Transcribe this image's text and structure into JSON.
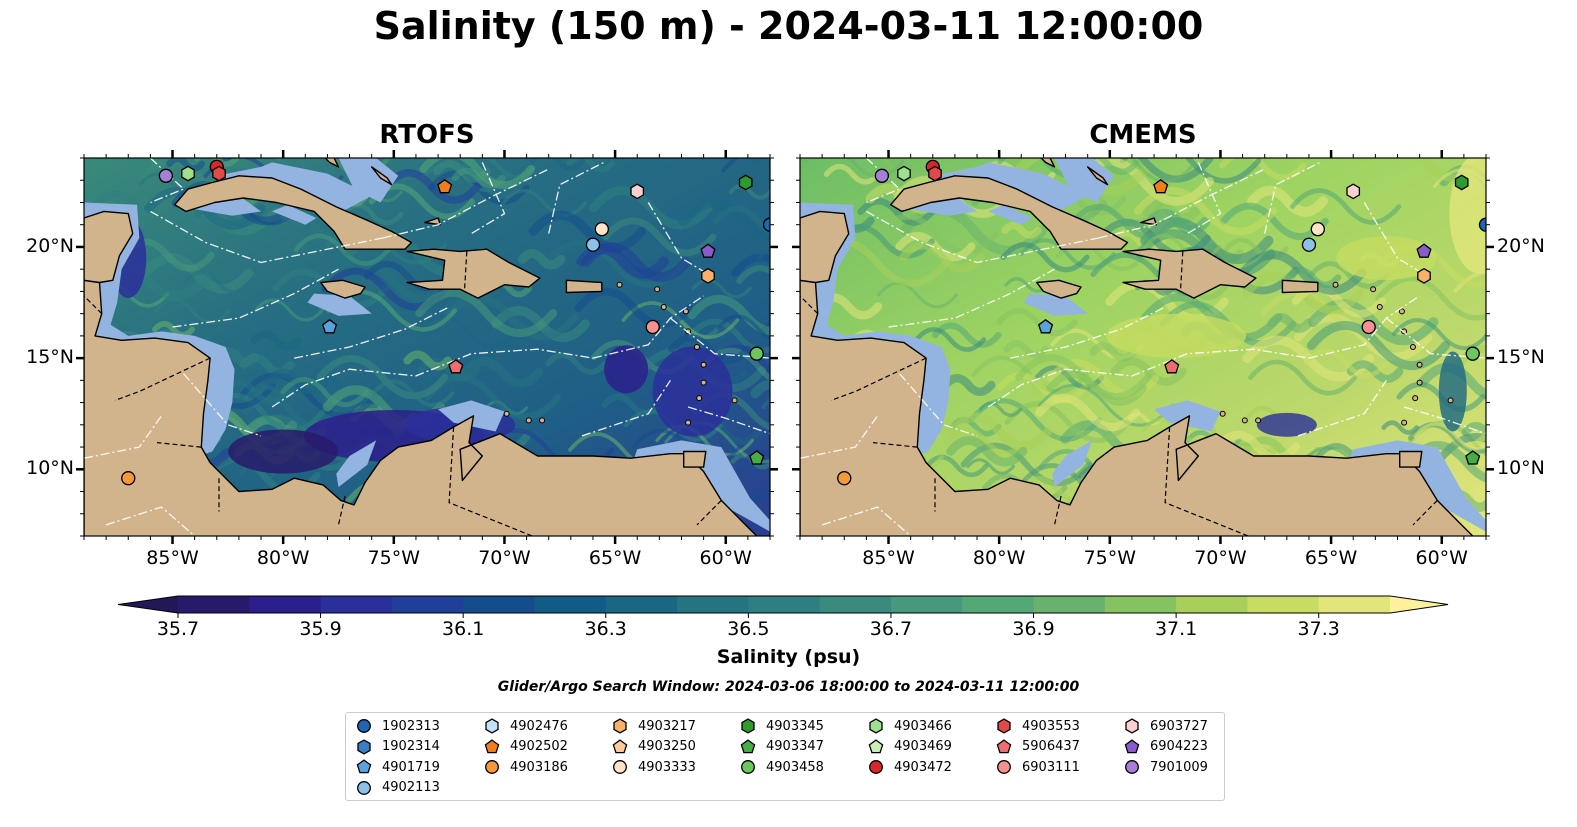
{
  "title": "Salinity (150 m) - 2024-03-11 12:00:00",
  "panels": [
    {
      "id": "rtofs",
      "title": "RTOFS",
      "base_color": "#2e6f8e",
      "scheme": "rtofs"
    },
    {
      "id": "cmems",
      "title": "CMEMS",
      "base_color": "#8fd06a",
      "scheme": "cmems"
    }
  ],
  "map": {
    "lon_range": [
      -89,
      -58
    ],
    "lat_range": [
      7,
      24
    ],
    "lon_ticks": [
      "85°W",
      "80°W",
      "75°W",
      "70°W",
      "65°W",
      "60°W"
    ],
    "lon_tick_values": [
      -85,
      -80,
      -75,
      -70,
      -65,
      -60
    ],
    "lat_ticks": [
      "10°N",
      "15°N",
      "20°N"
    ],
    "lat_tick_values": [
      10,
      15,
      20
    ],
    "colors": {
      "land": "#d2b48c",
      "shelf": "#93b4e0",
      "pacific": "#271e69"
    }
  },
  "colorbar": {
    "label": "Salinity (psu)",
    "tick_labels": [
      "35.7",
      "35.9",
      "36.1",
      "36.3",
      "36.5",
      "36.7",
      "36.9",
      "37.1",
      "37.3"
    ],
    "tick_values": [
      35.7,
      35.9,
      36.1,
      36.3,
      36.5,
      36.7,
      36.9,
      37.1,
      37.3
    ],
    "levels": [
      35.7,
      35.8,
      35.9,
      36.0,
      36.1,
      36.2,
      36.3,
      36.4,
      36.5,
      36.6,
      36.7,
      36.8,
      36.9,
      37.0,
      37.1,
      37.2,
      37.3
    ],
    "colors": [
      "#271a6b",
      "#2b1f8c",
      "#2a2f9a",
      "#213f99",
      "#154c8c",
      "#125b86",
      "#1b6683",
      "#267381",
      "#2f7f80",
      "#3a8b7d",
      "#46997a",
      "#53a876",
      "#6ab26c",
      "#87c261",
      "#a8cf5a",
      "#c6dc62",
      "#e2e67a"
    ],
    "extend_low": "#241758",
    "extend_high": "#fdf19e"
  },
  "search_window": "Glider/Argo Search Window: 2024-03-06 18:00:00 to 2024-03-11 12:00:00",
  "platforms": [
    {
      "id": "1902313",
      "marker": "circle",
      "color": "#1f66b3"
    },
    {
      "id": "1902314",
      "marker": "hexagon",
      "color": "#3a7fc6"
    },
    {
      "id": "4901719",
      "marker": "pentagon",
      "color": "#5aa2dc"
    },
    {
      "id": "4902113",
      "marker": "circle",
      "color": "#8dc1ea"
    },
    {
      "id": "4902476",
      "marker": "hexagon",
      "color": "#c4e2f7"
    },
    {
      "id": "4902502",
      "marker": "pentagon",
      "color": "#f07d1b"
    },
    {
      "id": "4903186",
      "marker": "circle",
      "color": "#f59a3a"
    },
    {
      "id": "4903217",
      "marker": "hexagon",
      "color": "#f8b06b"
    },
    {
      "id": "4903250",
      "marker": "pentagon",
      "color": "#fbc99a"
    },
    {
      "id": "4903333",
      "marker": "circle",
      "color": "#fde4c9"
    },
    {
      "id": "4903345",
      "marker": "hexagon",
      "color": "#2f9a30"
    },
    {
      "id": "4903347",
      "marker": "pentagon",
      "color": "#46ac46"
    },
    {
      "id": "4903458",
      "marker": "circle",
      "color": "#6cc75f"
    },
    {
      "id": "4903466",
      "marker": "hexagon",
      "color": "#9de08e"
    },
    {
      "id": "4903469",
      "marker": "pentagon",
      "color": "#c9f0b6"
    },
    {
      "id": "4903472",
      "marker": "circle",
      "color": "#d62828"
    },
    {
      "id": "4903553",
      "marker": "hexagon",
      "color": "#e04a4a"
    },
    {
      "id": "5906437",
      "marker": "pentagon",
      "color": "#ec6e6e"
    },
    {
      "id": "6903111",
      "marker": "circle",
      "color": "#f59191"
    },
    {
      "id": "6903727",
      "marker": "hexagon",
      "color": "#fbd0d0"
    },
    {
      "id": "6904223",
      "marker": "pentagon",
      "color": "#8a5cc9"
    },
    {
      "id": "7901009",
      "marker": "circle",
      "color": "#a77fd6"
    }
  ],
  "observations": [
    {
      "platform": "7901009",
      "lon": -85.3,
      "lat": 23.2
    },
    {
      "platform": "4903466",
      "lon": -84.3,
      "lat": 23.3
    },
    {
      "platform": "4903472",
      "lon": -83.0,
      "lat": 23.6
    },
    {
      "platform": "4903553",
      "lon": -82.9,
      "lat": 23.3
    },
    {
      "platform": "4902502",
      "lon": -72.7,
      "lat": 22.7
    },
    {
      "platform": "6903727",
      "lon": -64.0,
      "lat": 22.5
    },
    {
      "platform": "4903345",
      "lon": -59.1,
      "lat": 22.9
    },
    {
      "platform": "1902313",
      "lon": -58.0,
      "lat": 21.0
    },
    {
      "platform": "4903333",
      "lon": -65.6,
      "lat": 20.8
    },
    {
      "platform": "4902113",
      "lon": -66.0,
      "lat": 20.1
    },
    {
      "platform": "6904223",
      "lon": -60.8,
      "lat": 19.8
    },
    {
      "platform": "4903217",
      "lon": -60.8,
      "lat": 18.7
    },
    {
      "platform": "4901719",
      "lon": -77.9,
      "lat": 16.4
    },
    {
      "platform": "6903111",
      "lon": -63.3,
      "lat": 16.4
    },
    {
      "platform": "5906437",
      "lon": -72.2,
      "lat": 14.6
    },
    {
      "platform": "4903458",
      "lon": -58.6,
      "lat": 15.2
    },
    {
      "platform": "4903347",
      "lon": -58.6,
      "lat": 10.5
    },
    {
      "platform": "4903186",
      "lon": -87.0,
      "lat": 9.6
    }
  ]
}
